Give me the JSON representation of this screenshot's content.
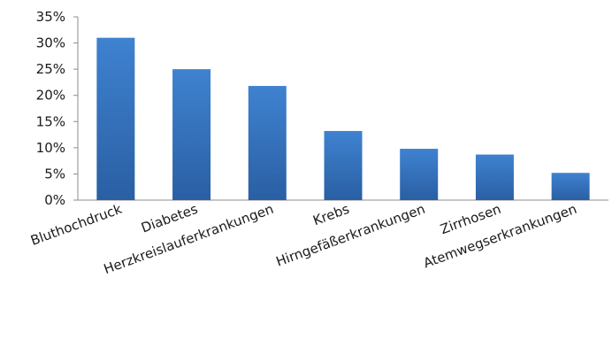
{
  "chart_data": {
    "type": "bar",
    "title": "",
    "xlabel": "",
    "ylabel": "",
    "categories": [
      "Bluthochdruck",
      "Diabetes",
      "Herzkreislauferkrankungen",
      "Krebs",
      "Hirngefäßerkrankungen",
      "Zirrhosen",
      "Atemwegserkrankungen"
    ],
    "values": [
      31,
      25,
      21.8,
      13.2,
      9.8,
      8.7,
      5.2
    ],
    "ylim": [
      0,
      35
    ],
    "y_ticks": [
      0,
      5,
      10,
      15,
      20,
      25,
      30,
      35
    ],
    "y_tick_labels": [
      "0%",
      "5%",
      "10%",
      "15%",
      "20%",
      "25%",
      "30%",
      "35%"
    ],
    "grid": false,
    "legend": "none",
    "bar_color_top": "#3f82d0",
    "bar_color_bottom": "#2a5fa3"
  }
}
